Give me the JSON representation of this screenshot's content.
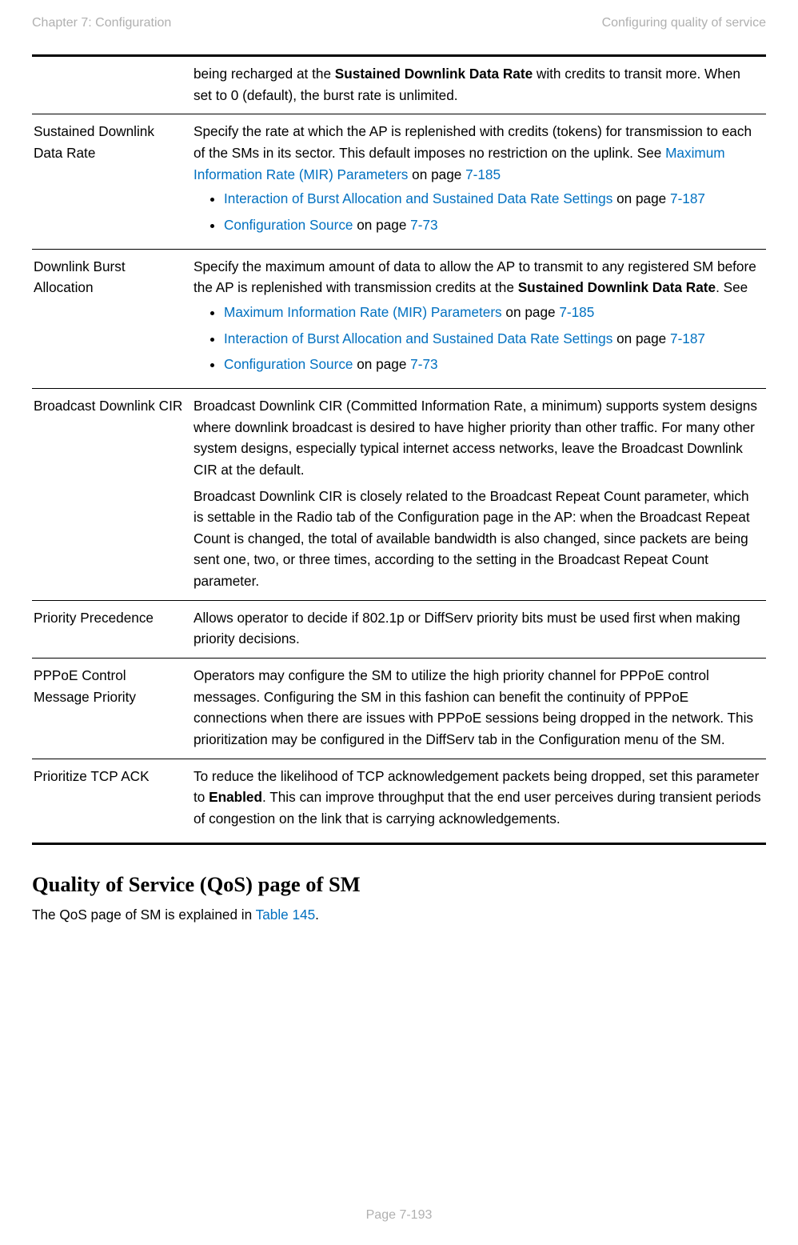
{
  "header": {
    "left": "Chapter 7:  Configuration",
    "right": "Configuring quality of service"
  },
  "rows": {
    "row0": {
      "desc_prefix": "being recharged at the ",
      "desc_bold": "Sustained Downlink Data Rate",
      "desc_suffix": " with credits to transit more. When set to 0 (default), the burst rate is unlimited."
    },
    "row1": {
      "label": "Sustained Downlink Data Rate",
      "desc_prefix": "Specify the rate at which the AP is replenished with credits (tokens) for transmission to each of the SMs in its sector. This default imposes no restriction on the uplink. See ",
      "link_mir": "Maximum Information Rate (MIR) Parameters",
      "on_page": " on page ",
      "page_mir": "7-185",
      "li1_link": "Interaction of Burst Allocation and Sustained Data Rate Settings",
      "li1_on": " on page ",
      "li1_page": "7-187",
      "li2_link": "Configuration Source",
      "li2_on": " on page ",
      "li2_page": "7-73"
    },
    "row2": {
      "label": "Downlink Burst Allocation",
      "desc_prefix": "Specify the maximum amount of data to allow the AP to transmit to any registered SM before the AP is replenished with transmission credits at the ",
      "desc_bold": "Sustained Downlink Data Rate",
      "desc_suffix": ". See",
      "li1_link": "Maximum Information Rate (MIR) Parameters",
      "li1_on": " on page ",
      "li1_page": "7-185",
      "li2_link": "Interaction of Burst Allocation and Sustained Data Rate Settings",
      "li2_on": " on page ",
      "li2_page": "7-187",
      "li3_link": "Configuration Source",
      "li3_on": " on page ",
      "li3_page": "7-73"
    },
    "row3": {
      "label": "Broadcast Downlink CIR",
      "p1": "Broadcast Downlink CIR (Committed Information Rate, a minimum) supports system designs where downlink broadcast is desired to have higher priority than other traffic. For many other system designs, especially typical internet access networks, leave the Broadcast Downlink CIR at the default.",
      "p2": "Broadcast Downlink CIR is closely related to the Broadcast Repeat Count parameter, which is settable in the Radio tab of the Configuration page in the AP: when the Broadcast Repeat Count is changed, the total of available bandwidth is also changed, since packets are being sent one, two, or three times, according to the setting in the Broadcast Repeat Count parameter."
    },
    "row4": {
      "label": "Priority Precedence",
      "desc": "Allows operator to decide if 802.1p or DiffServ priority bits must be used first when making priority decisions."
    },
    "row5": {
      "label": "PPPoE Control Message Priority",
      "desc": "Operators may configure the SM to utilize the high priority channel for PPPoE control messages. Configuring the SM in this fashion can benefit the continuity of PPPoE connections when there are issues with PPPoE sessions being dropped in the network. This prioritization may be configured in the DiffServ tab in the Configuration menu of the SM."
    },
    "row6": {
      "label": "Prioritize TCP ACK",
      "desc_prefix": "To reduce the likelihood of TCP acknowledgement packets being dropped, set this parameter to ",
      "desc_bold": "Enabled",
      "desc_suffix": ". This can improve throughput that the end user perceives during transient periods of congestion on the link that is carrying acknowledgements."
    }
  },
  "section": {
    "heading": "Quality of Service (QoS) page of SM",
    "body_prefix": "The QoS page of SM is explained in ",
    "body_link": "Table 145",
    "body_suffix": "."
  },
  "footer": "Page 7-193"
}
